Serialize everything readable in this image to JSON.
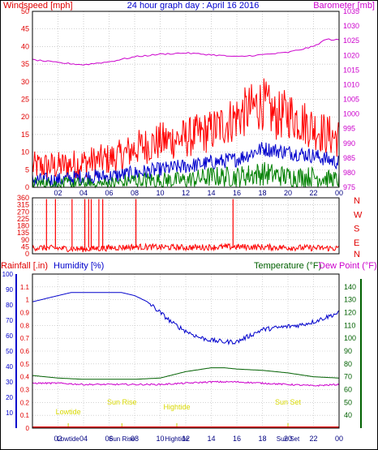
{
  "chart_data": [
    {
      "type": "line",
      "title": "24 hour graph day : April 16 2016",
      "left_axis": {
        "label": "Windspeed [mph]",
        "range": [
          0,
          50
        ],
        "ticks": [
          "0",
          "5",
          "10",
          "15",
          "20",
          "25",
          "30",
          "35",
          "40",
          "45",
          "50"
        ],
        "color": "#e00000"
      },
      "right_axis": {
        "label": "Barometer [mb]",
        "range": [
          975,
          1035
        ],
        "ticks": [
          "975",
          "980",
          "985",
          "990",
          "995",
          "1000",
          "1005",
          "1010",
          "1015",
          "1020",
          "1025",
          "1030",
          "1035"
        ],
        "color": "#cc00cc"
      },
      "x_ticks": [
        "02",
        "04",
        "06",
        "08",
        "10",
        "12",
        "14",
        "16",
        "18",
        "20",
        "22",
        "00"
      ],
      "grid": true,
      "series": [
        {
          "name": "",
          "color": "#ff0000",
          "hours": [
            0,
            2,
            4,
            6,
            7,
            8,
            10,
            12,
            14,
            16,
            17,
            18,
            19,
            20,
            21,
            22,
            23,
            24
          ],
          "values": [
            6,
            6,
            7,
            8,
            9,
            11,
            13,
            14,
            16,
            20,
            22,
            24,
            20,
            21,
            19,
            17,
            15,
            14
          ]
        },
        {
          "name": "",
          "color": "#0000cc",
          "hours": [
            0,
            2,
            4,
            6,
            8,
            10,
            12,
            14,
            16,
            18,
            20,
            22,
            24
          ],
          "values": [
            2,
            2,
            3,
            3,
            4,
            5,
            6,
            7,
            8,
            11,
            10,
            9,
            7
          ]
        },
        {
          "name": "",
          "color": "#008000",
          "hours": [
            0,
            2,
            4,
            6,
            8,
            10,
            12,
            14,
            16,
            18,
            20,
            22,
            24
          ],
          "values": [
            1,
            1,
            1,
            1,
            2,
            2,
            2,
            3,
            3,
            4,
            3,
            3,
            2
          ]
        },
        {
          "name": "",
          "color": "#cc00cc",
          "hours": [
            0,
            2,
            4,
            6,
            8,
            10,
            12,
            14,
            16,
            18,
            20,
            22,
            23,
            24
          ],
          "values": [
            1018.5,
            1017.5,
            1016.8,
            1017.8,
            1019.5,
            1020.4,
            1020.8,
            1020.2,
            1019.5,
            1020.2,
            1021,
            1023,
            1025.5,
            1025.2
          ]
        }
      ]
    },
    {
      "type": "line",
      "title": "",
      "left_axis": {
        "range": [
          0,
          360
        ],
        "ticks": [
          "0",
          "45",
          "90",
          "135",
          "180",
          "225",
          "270",
          "315",
          "360"
        ],
        "color": "#e00000"
      },
      "right_labels": [
        "N",
        "W",
        "S",
        "E",
        "N"
      ],
      "series": [
        {
          "name": "",
          "color": "#ff0000",
          "hours": [
            0,
            4,
            8,
            12,
            16,
            20,
            24
          ],
          "values": [
            40,
            30,
            45,
            40,
            45,
            40,
            35
          ]
        }
      ],
      "spikes_hours": [
        1.1,
        1.8,
        3.1,
        4.1,
        4.4,
        4.6,
        5.2,
        5.5,
        8.1,
        15.7
      ]
    },
    {
      "type": "line",
      "title": "",
      "labels": {
        "rainfall": "Rainfall [.in)",
        "humidity": "Humidity [%)",
        "temperature": "Temperature (°F)",
        "dewpoint": "Dew Point (°F)"
      },
      "rain_axis": {
        "range": [
          0,
          1.2
        ],
        "ticks": [
          "0",
          "0.1",
          "0.2",
          "0.3",
          "0.4",
          "0.5",
          "0.6",
          "0.7",
          "0.8",
          "0.9",
          "1",
          "1.1"
        ]
      },
      "humidity_axis": {
        "range": [
          0,
          100
        ],
        "ticks": [
          "10",
          "20",
          "30",
          "40",
          "50",
          "60",
          "70",
          "80",
          "90",
          "100"
        ]
      },
      "temp_axis": {
        "range": [
          30,
          150
        ],
        "ticks": [
          "40",
          "50",
          "60",
          "70",
          "80",
          "90",
          "100",
          "110",
          "120",
          "130",
          "140"
        ]
      },
      "events": [
        {
          "label": "Lowtide",
          "hour": 2.8,
          "label_row": 1
        },
        {
          "label": "Sun Rise",
          "hour": 7.0,
          "label_row": 0
        },
        {
          "label": "Hightide",
          "hour": 11.3,
          "label_row": 1
        },
        {
          "label": "Sun Set",
          "hour": 20.0,
          "label_row": 0
        }
      ],
      "series": [
        {
          "name": "",
          "color": "#0000cc",
          "axis": "humidity",
          "hours": [
            0,
            1,
            2,
            3,
            4,
            5,
            6,
            7,
            8,
            9,
            10,
            11,
            12,
            13,
            14,
            15,
            16,
            17,
            18,
            19,
            20,
            21,
            22,
            23,
            24
          ],
          "values": [
            82,
            84,
            86,
            88,
            88,
            88,
            88,
            88,
            86,
            82,
            75,
            68,
            63,
            59,
            57,
            56,
            56,
            60,
            64,
            65,
            66,
            67,
            69,
            72,
            75
          ]
        },
        {
          "name": "",
          "color": "#006000",
          "axis": "temp",
          "hours": [
            0,
            2,
            4,
            6,
            8,
            10,
            12,
            14,
            15,
            16,
            18,
            20,
            22,
            24
          ],
          "values": [
            71,
            69,
            68,
            68,
            68,
            69,
            74,
            77,
            77,
            76,
            75,
            73,
            70,
            69
          ]
        },
        {
          "name": "",
          "color": "#cc00cc",
          "axis": "temp",
          "hours": [
            0,
            2,
            4,
            6,
            8,
            10,
            12,
            14,
            16,
            18,
            20,
            22,
            24
          ],
          "values": [
            65,
            65,
            64,
            64,
            64,
            64,
            65,
            66,
            66,
            65,
            64,
            63,
            64
          ]
        }
      ],
      "x_ticks": [
        "02",
        "04",
        "06",
        "08",
        "10",
        "12",
        "14",
        "16",
        "18",
        "20",
        "22",
        "00"
      ]
    }
  ]
}
